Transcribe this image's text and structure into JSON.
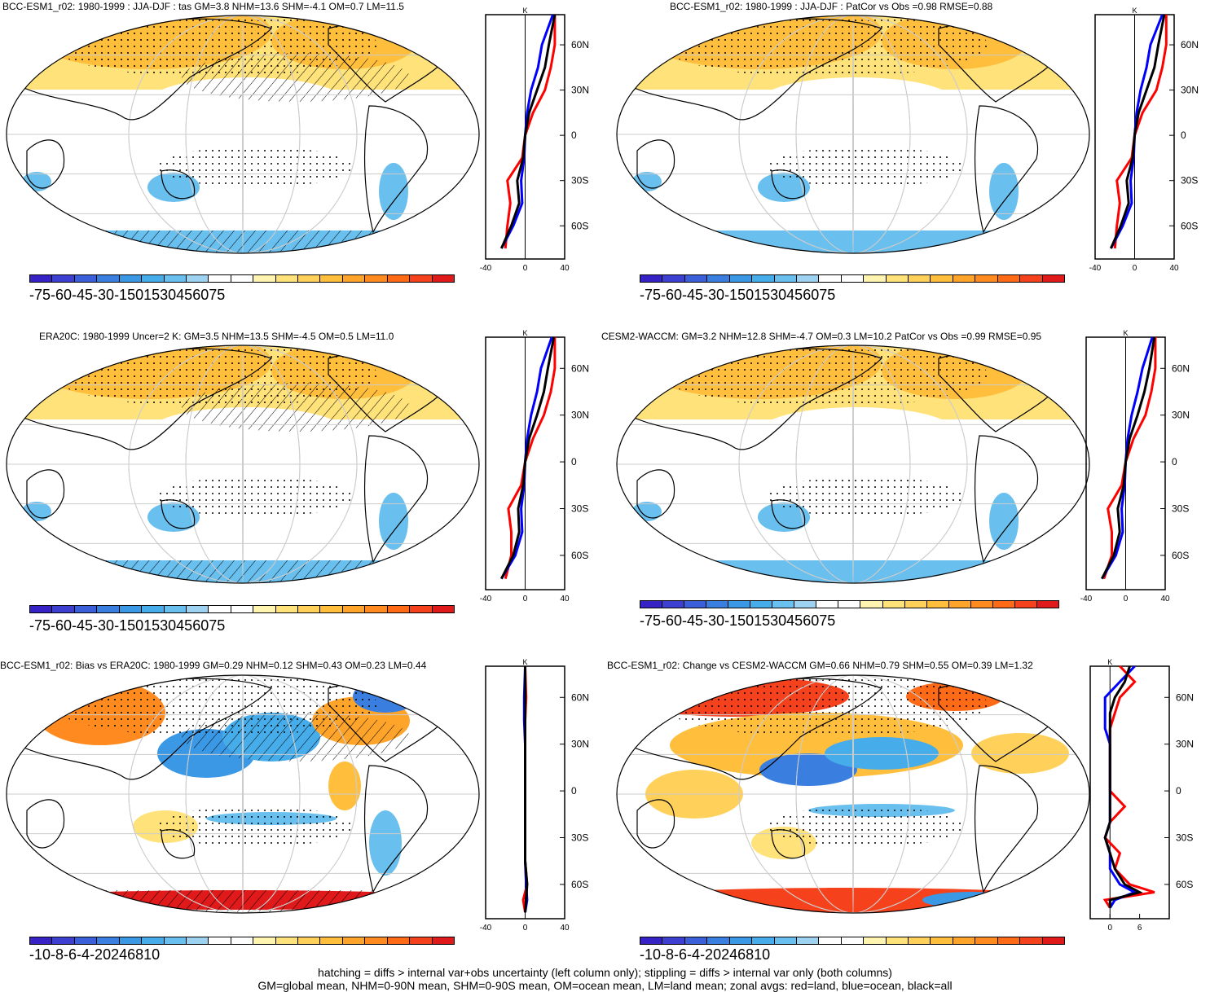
{
  "colors": {
    "warm": [
      "#fff4b0",
      "#ffe27a",
      "#ffd15a",
      "#ffbe3c",
      "#ffa42a",
      "#ff8a1f",
      "#ff6a17",
      "#f5421c",
      "#e01a1a"
    ],
    "cool": [
      "#9dd3f0",
      "#69bfee",
      "#46acea",
      "#3b98e4",
      "#3a7fe0",
      "#3b5fd8",
      "#3d3fd0",
      "#3722c6"
    ],
    "zonal_land": "#ff0000",
    "zonal_ocean": "#0000ff",
    "zonal_all": "#000000"
  },
  "panels": [
    {
      "title": "BCC-ESM1_r02: 1980-1999 : JJA-DJF : tas GM=3.8 NHM=13.6 SHM=-4.1 OM=0.7 LM=11.5",
      "cbar_labels": [
        "-75",
        "-60",
        "-45",
        "-30",
        "-15",
        "0",
        "15",
        "30",
        "45",
        "60",
        "75"
      ],
      "zonal": {
        "unit": "K",
        "xticks": [
          "-40",
          "0",
          "40"
        ],
        "lat_labels": [
          "60N",
          "30N",
          "0",
          "30S",
          "60S"
        ]
      }
    },
    {
      "title": "BCC-ESM1_r02: 1980-1999 : JJA-DJF : PatCor vs Obs =0.98 RMSE=0.88",
      "cbar_labels": [
        "-75",
        "-60",
        "-45",
        "-30",
        "-15",
        "0",
        "15",
        "30",
        "45",
        "60",
        "75"
      ],
      "zonal": {
        "unit": "K",
        "xticks": [
          "-40",
          "0",
          "40"
        ],
        "lat_labels": [
          "60N",
          "30N",
          "0",
          "30S",
          "60S"
        ]
      }
    },
    {
      "title": "ERA20C: 1980-1999 Uncer=2 K: GM=3.5 NHM=13.5 SHM=-4.5 OM=0.5 LM=11.0",
      "cbar_labels": [
        "-75",
        "-60",
        "-45",
        "-30",
        "-15",
        "0",
        "15",
        "30",
        "45",
        "60",
        "75"
      ],
      "zonal": {
        "unit": "K",
        "xticks": [
          "-40",
          "0",
          "40"
        ],
        "lat_labels": [
          "60N",
          "30N",
          "0",
          "30S",
          "60S"
        ]
      }
    },
    {
      "title": "CESM2-WACCM: GM=3.2 NHM=12.8 SHM=-4.7 OM=0.3 LM=10.2 PatCor vs Obs =0.99 RMSE=0.95",
      "cbar_labels": [
        "-75",
        "-60",
        "-45",
        "-30",
        "-15",
        "0",
        "15",
        "30",
        "45",
        "60",
        "75"
      ],
      "zonal": {
        "unit": "K",
        "xticks": [
          "-40",
          "0",
          "40"
        ],
        "lat_labels": [
          "60N",
          "30N",
          "0",
          "30S",
          "60S"
        ]
      }
    },
    {
      "title": "BCC-ESM1_r02: Bias vs ERA20C: 1980-1999 GM=0.29 NHM=0.12 SHM=0.43 OM=0.23 LM=0.44",
      "cbar_labels": [
        "-10",
        "-8",
        "-6",
        "-4",
        "-2",
        "0",
        "2",
        "4",
        "6",
        "8",
        "10"
      ],
      "zonal": {
        "unit": "K",
        "xticks": [
          "-40",
          "0",
          "40"
        ],
        "lat_labels": [
          "60N",
          "30N",
          "0",
          "30S",
          "60S"
        ]
      }
    },
    {
      "title": "BCC-ESM1_r02: Change vs CESM2-WACCM GM=0.66 NHM=0.79 SHM=0.55 OM=0.39 LM=1.32",
      "cbar_labels": [
        "-10",
        "-8",
        "-6",
        "-4",
        "-2",
        "0",
        "2",
        "4",
        "6",
        "8",
        "10"
      ],
      "zonal": {
        "unit": "K",
        "xticks": [
          "0",
          "6"
        ],
        "lat_labels": [
          "60N",
          "30N",
          "0",
          "30S",
          "60S"
        ]
      }
    }
  ],
  "footer": {
    "line1": "hatching = diffs > internal var+obs uncertainty (left column only); stippling = diffs > internal var only (both columns)",
    "line2": "GM=global mean, NHM=0-90N mean, SHM=0-90S mean, OM=ocean mean, LM=land mean; zonal avgs: red=land, blue=ocean, black=all"
  },
  "chart_data": [
    {
      "type": "heatmap",
      "title": "BCC-ESM1_r02: 1980-1999 : JJA-DJF : tas",
      "units": "K",
      "clim": [
        -75,
        75
      ],
      "zonal_avg": {
        "lat": [
          80,
          60,
          45,
          30,
          15,
          0,
          -15,
          -30,
          -45,
          -60,
          -75
        ],
        "land": [
          30,
          30,
          26,
          20,
          8,
          0,
          -3,
          -18,
          -15,
          -18,
          -20
        ],
        "ocean": [
          28,
          17,
          13,
          6,
          2,
          0,
          -1,
          -4,
          -3,
          -12,
          -24
        ],
        "all": [
          30,
          24,
          20,
          12,
          4,
          0,
          -2,
          -8,
          -6,
          -14,
          -24
        ]
      }
    },
    {
      "type": "heatmap",
      "title": "BCC-ESM1_r02: 1980-1999 : JJA-DJF : PatCor vs Obs",
      "units": "K",
      "clim": [
        -75,
        75
      ],
      "zonal_avg": {
        "lat": [
          80,
          60,
          45,
          30,
          15,
          0,
          -15,
          -30,
          -45,
          -60,
          -75
        ],
        "land": [
          32,
          32,
          28,
          22,
          8,
          0,
          -3,
          -18,
          -15,
          -18,
          -20
        ],
        "ocean": [
          28,
          16,
          12,
          6,
          2,
          0,
          -1,
          -4,
          -3,
          -12,
          -24
        ],
        "all": [
          30,
          24,
          20,
          12,
          4,
          0,
          -2,
          -8,
          -6,
          -14,
          -24
        ]
      }
    },
    {
      "type": "heatmap",
      "title": "ERA20C: 1980-1999 Uncer=2 K",
      "units": "K",
      "clim": [
        -75,
        75
      ],
      "zonal_avg": {
        "lat": [
          80,
          60,
          45,
          30,
          15,
          0,
          -15,
          -30,
          -45,
          -60,
          -75
        ],
        "land": [
          30,
          30,
          26,
          19,
          8,
          0,
          -4,
          -17,
          -14,
          -14,
          -20
        ],
        "ocean": [
          27,
          16,
          12,
          6,
          2,
          0,
          -1,
          -4,
          -3,
          -10,
          -24
        ],
        "all": [
          29,
          23,
          19,
          12,
          4,
          0,
          -2,
          -7,
          -6,
          -12,
          -24
        ]
      }
    },
    {
      "type": "heatmap",
      "title": "CESM2-WACCM",
      "units": "K",
      "clim": [
        -75,
        75
      ],
      "zonal_avg": {
        "lat": [
          80,
          60,
          45,
          30,
          15,
          0,
          -15,
          -30,
          -45,
          -60,
          -75
        ],
        "land": [
          30,
          30,
          26,
          20,
          8,
          0,
          -4,
          -18,
          -14,
          -14,
          -22
        ],
        "ocean": [
          27,
          17,
          12,
          6,
          2,
          0,
          -1,
          -4,
          -3,
          -10,
          -24
        ],
        "all": [
          29,
          24,
          19,
          12,
          4,
          0,
          -2,
          -8,
          -6,
          -12,
          -24
        ]
      }
    },
    {
      "type": "heatmap",
      "title": "BCC-ESM1_r02: Bias vs ERA20C",
      "units": "K",
      "clim": [
        -10,
        10
      ],
      "zonal_avg": {
        "lat": [
          80,
          60,
          45,
          30,
          15,
          0,
          -15,
          -30,
          -45,
          -60,
          -70,
          -78
        ],
        "land": [
          0,
          1,
          0,
          0,
          0,
          0,
          0,
          0,
          0,
          2,
          -2,
          0
        ],
        "ocean": [
          0,
          -1,
          -1,
          0,
          0,
          0,
          0,
          0,
          0,
          1,
          2,
          0
        ],
        "all": [
          0,
          0,
          0,
          0,
          0,
          0,
          0,
          0,
          0,
          2,
          1,
          0
        ]
      }
    },
    {
      "type": "heatmap",
      "title": "BCC-ESM1_r02: Change vs CESM2-WACCM",
      "units": "K",
      "clim": [
        -10,
        10
      ],
      "zonal_avg": {
        "lat": [
          80,
          70,
          60,
          50,
          40,
          30,
          20,
          10,
          0,
          -10,
          -20,
          -30,
          -40,
          -50,
          -60,
          -65,
          -70,
          -75
        ],
        "land": [
          2,
          5,
          2,
          1,
          0,
          0,
          0,
          0,
          0,
          3,
          0,
          -1,
          2,
          1,
          4,
          9,
          -1,
          0
        ],
        "ocean": [
          5,
          2,
          -1,
          -1,
          -1,
          0,
          0,
          0,
          0,
          0,
          0,
          -1,
          0,
          0,
          2,
          5,
          1,
          0
        ],
        "all": [
          4,
          3,
          1,
          0,
          0,
          0,
          0,
          0,
          0,
          0,
          0,
          -1,
          0,
          1,
          3,
          6,
          0,
          0
        ]
      }
    }
  ]
}
